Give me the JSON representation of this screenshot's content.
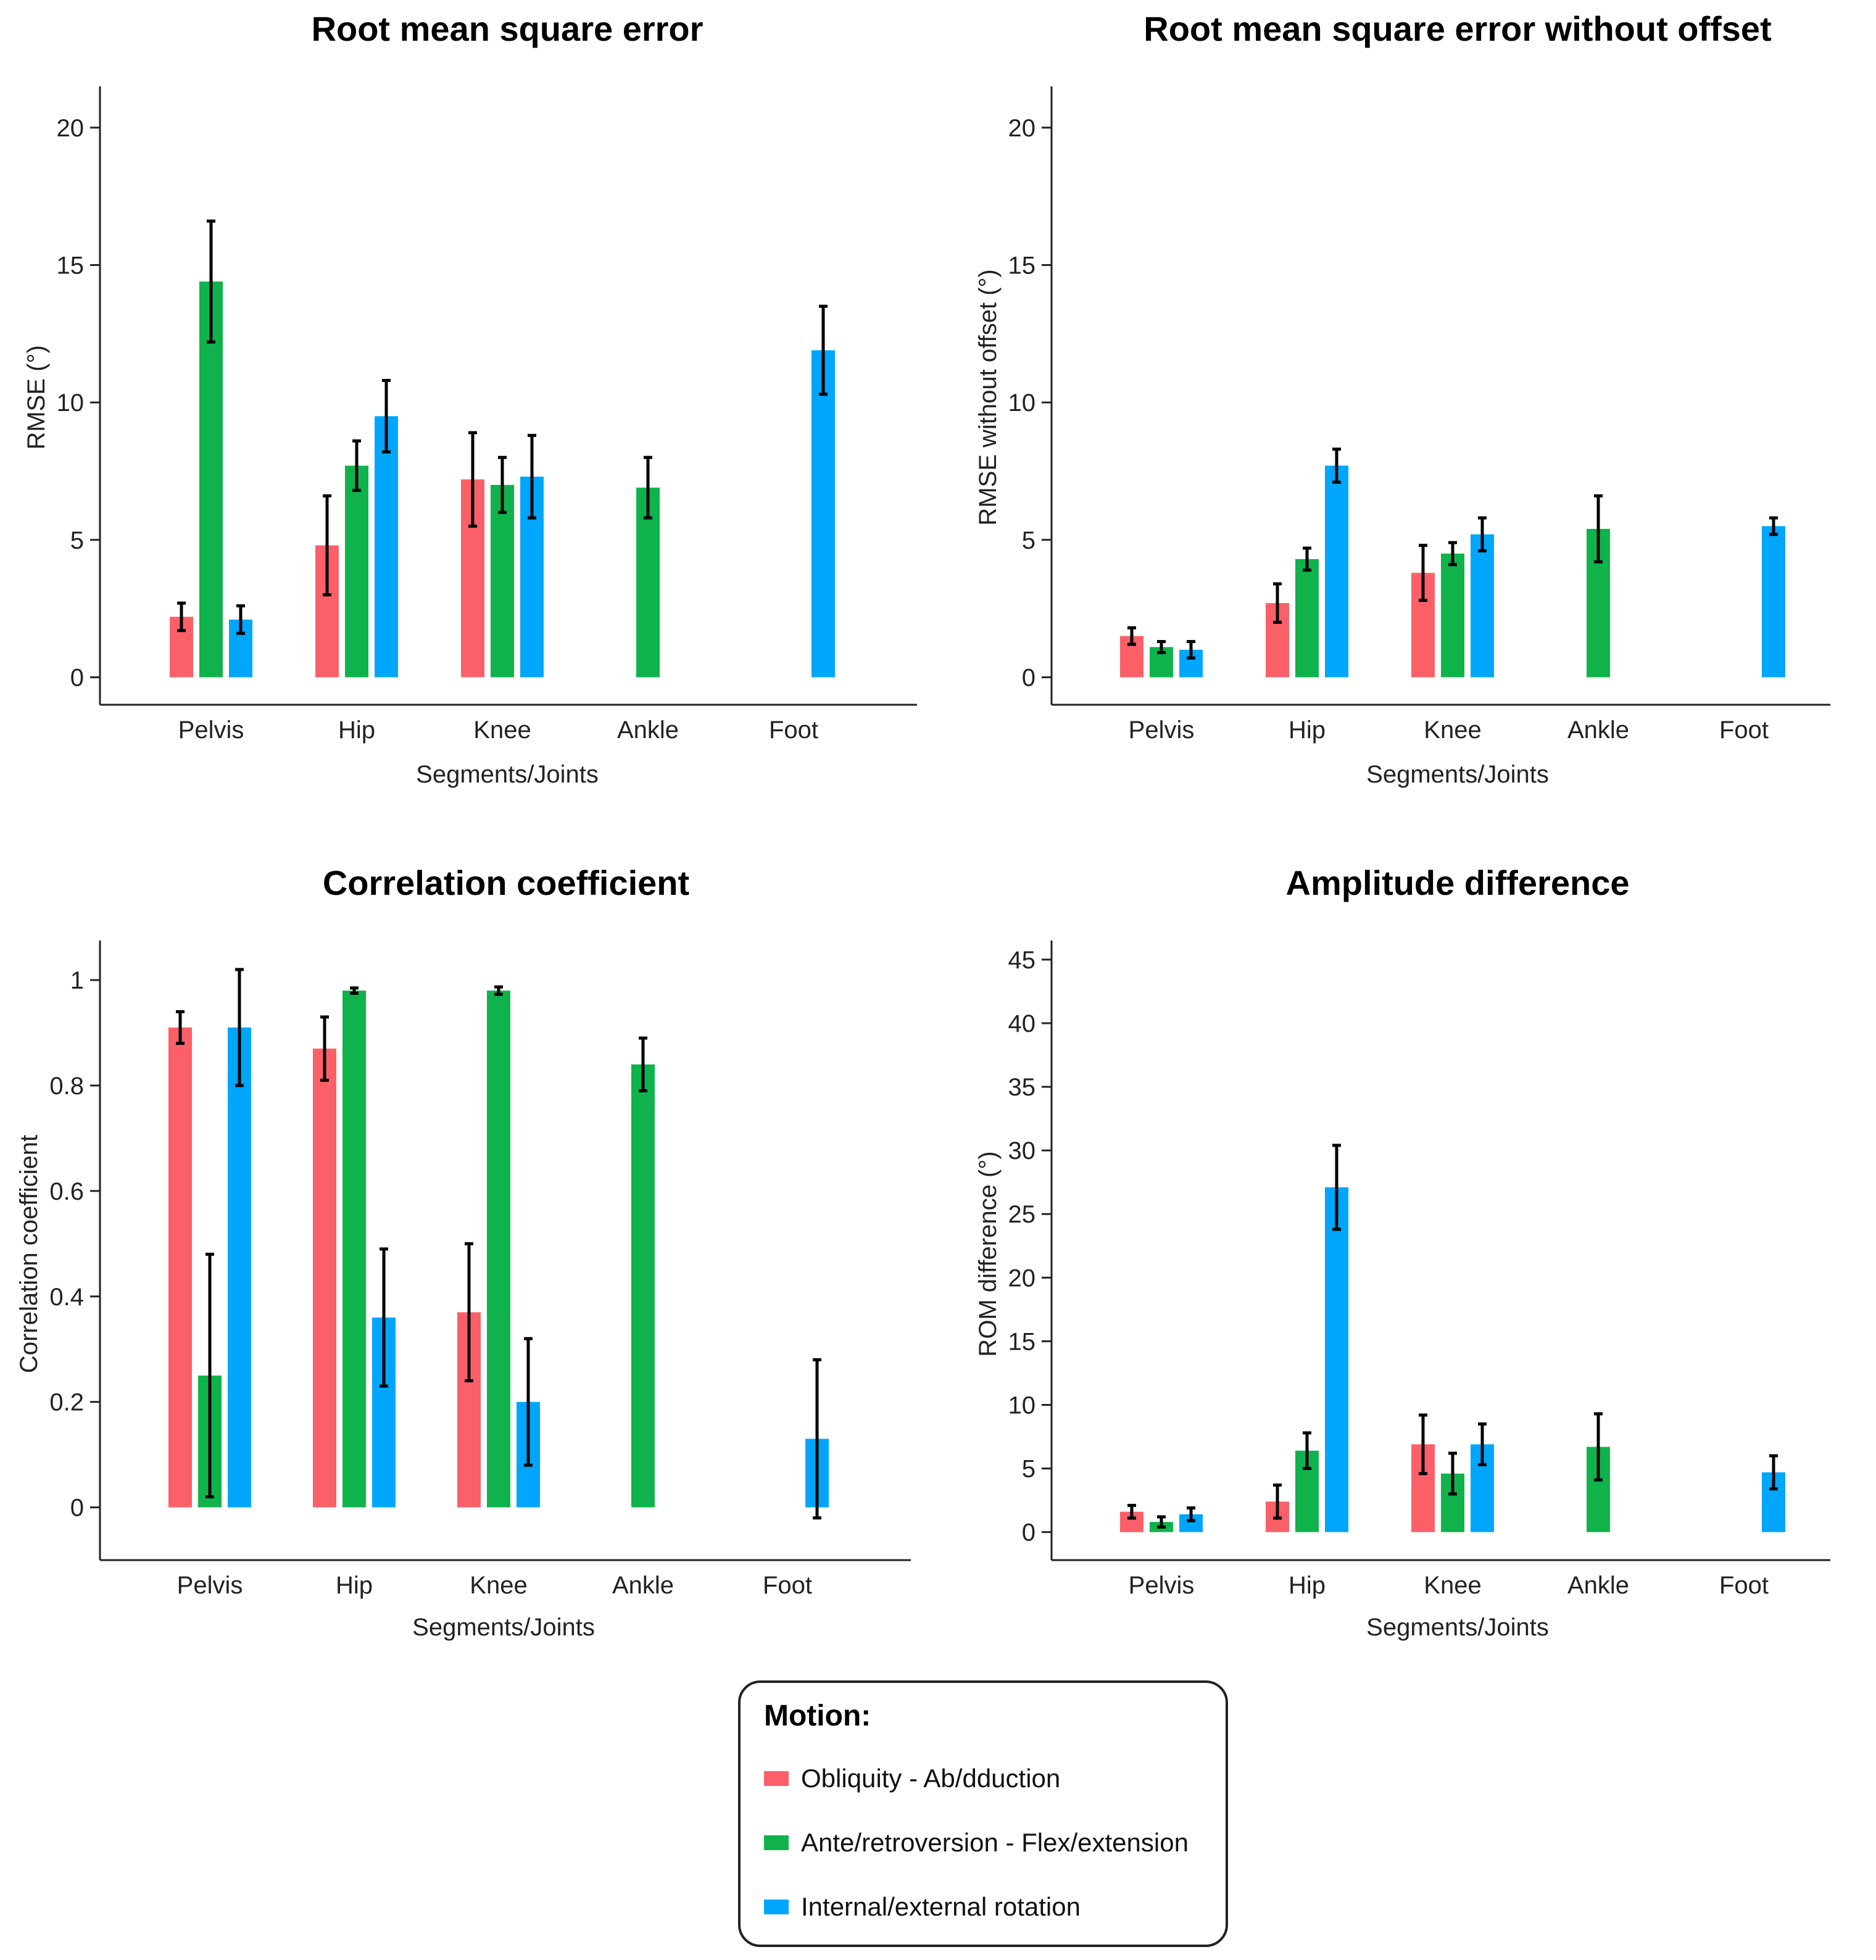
{
  "colors": {
    "obliquity": "#fb6069",
    "flexion": "#10b34b",
    "rotation": "#00a6fb",
    "errorbar": "#000000",
    "axis": "#222222"
  },
  "legend": {
    "title": "Motion:",
    "items": [
      {
        "label": "Obliquity - Ab/dduction",
        "color": "#fb6069"
      },
      {
        "label": "Ante/retroversion - Flex/extension",
        "color": "#10b34b"
      },
      {
        "label": "Internal/external rotation",
        "color": "#00a6fb"
      }
    ]
  },
  "chart_data": [
    {
      "type": "bar",
      "title": "Root mean square error",
      "xlabel": "Segments/Joints",
      "ylabel": "RMSE (°)",
      "categories": [
        "Pelvis",
        "Hip",
        "Knee",
        "Ankle",
        "Foot"
      ],
      "ylim": [
        -1,
        21.5
      ],
      "yticks": [
        0,
        5,
        10,
        15,
        20
      ],
      "ytick_labels": [
        "0",
        "5",
        "10",
        "15",
        "20"
      ],
      "series": [
        {
          "name": "Obliquity - Ab/dduction",
          "values": [
            2.2,
            4.8,
            7.2,
            null,
            null
          ],
          "errors": [
            0.5,
            1.8,
            1.7,
            null,
            null
          ]
        },
        {
          "name": "Ante/retroversion - Flex/extension",
          "values": [
            14.4,
            7.7,
            7.0,
            6.9,
            null
          ],
          "errors": [
            2.2,
            0.9,
            1.0,
            1.1,
            null
          ]
        },
        {
          "name": "Internal/external rotation",
          "values": [
            2.1,
            9.5,
            7.3,
            null,
            11.9
          ],
          "errors": [
            0.5,
            1.3,
            1.5,
            null,
            1.6
          ]
        }
      ]
    },
    {
      "type": "bar",
      "title": "Root mean square error without offset",
      "xlabel": "Segments/Joints",
      "ylabel": "RMSE without offset (°)",
      "categories": [
        "Pelvis",
        "Hip",
        "Knee",
        "Ankle",
        "Foot"
      ],
      "ylim": [
        -1,
        21.5
      ],
      "yticks": [
        0,
        5,
        10,
        15,
        20
      ],
      "ytick_labels": [
        "0",
        "5",
        "10",
        "15",
        "20"
      ],
      "series": [
        {
          "name": "Obliquity - Ab/dduction",
          "values": [
            1.5,
            2.7,
            3.8,
            null,
            null
          ],
          "errors": [
            0.3,
            0.7,
            1.0,
            null,
            null
          ]
        },
        {
          "name": "Ante/retroversion - Flex/extension",
          "values": [
            1.1,
            4.3,
            4.5,
            5.4,
            null
          ],
          "errors": [
            0.2,
            0.4,
            0.4,
            1.2,
            null
          ]
        },
        {
          "name": "Internal/external rotation",
          "values": [
            1.0,
            7.7,
            5.2,
            null,
            5.5
          ],
          "errors": [
            0.3,
            0.6,
            0.6,
            null,
            0.3
          ]
        }
      ]
    },
    {
      "type": "bar",
      "title": "Correlation coefficient",
      "xlabel": "Segments/Joints",
      "ylabel": "Correlation coefficient",
      "categories": [
        "Pelvis",
        "Hip",
        "Knee",
        "Ankle",
        "Foot"
      ],
      "ylim": [
        -0.1,
        1.075
      ],
      "yticks": [
        0,
        0.2,
        0.4,
        0.6,
        0.8,
        1
      ],
      "ytick_labels": [
        "0",
        "0.2",
        "0.4",
        "0.6",
        "0.8",
        "1"
      ],
      "series": [
        {
          "name": "Obliquity - Ab/dduction",
          "values": [
            0.91,
            0.87,
            0.37,
            null,
            null
          ],
          "errors": [
            0.03,
            0.06,
            0.13,
            null,
            null
          ]
        },
        {
          "name": "Ante/retroversion - Flex/extension",
          "values": [
            0.25,
            0.98,
            0.98,
            0.84,
            null
          ],
          "errors": [
            0.23,
            0.005,
            0.007,
            0.05,
            null
          ]
        },
        {
          "name": "Internal/external rotation",
          "values": [
            0.91,
            0.36,
            0.2,
            null,
            0.13
          ],
          "errors": [
            0.11,
            0.13,
            0.12,
            null,
            0.15
          ]
        }
      ]
    },
    {
      "type": "bar",
      "title": "Amplitude difference",
      "xlabel": "Segments/Joints",
      "ylabel": "ROM difference (°)",
      "categories": [
        "Pelvis",
        "Hip",
        "Knee",
        "Ankle",
        "Foot"
      ],
      "ylim": [
        -2.2,
        46.5
      ],
      "yticks": [
        0,
        5,
        10,
        15,
        20,
        25,
        30,
        35,
        40,
        45
      ],
      "ytick_labels": [
        "0",
        "5",
        "10",
        "15",
        "20",
        "25",
        "30",
        "35",
        "40",
        "45"
      ],
      "series": [
        {
          "name": "Obliquity - Ab/dduction",
          "values": [
            1.6,
            2.4,
            6.9,
            null,
            null
          ],
          "errors": [
            0.5,
            1.3,
            2.3,
            null,
            null
          ]
        },
        {
          "name": "Ante/retroversion - Flex/extension",
          "values": [
            0.8,
            6.4,
            4.6,
            6.7,
            null
          ],
          "errors": [
            0.4,
            1.4,
            1.6,
            2.6,
            null
          ]
        },
        {
          "name": "Internal/external rotation",
          "values": [
            1.4,
            27.1,
            6.9,
            null,
            4.7
          ],
          "errors": [
            0.5,
            3.3,
            1.6,
            null,
            1.3
          ]
        }
      ]
    }
  ]
}
